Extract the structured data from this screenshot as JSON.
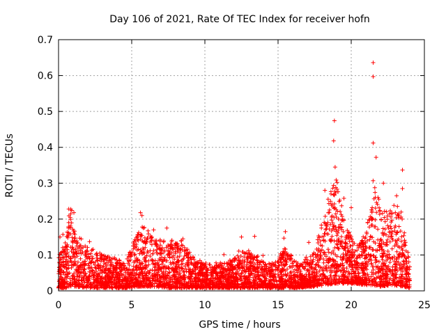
{
  "chart_data": {
    "type": "scatter",
    "title": "Day 106 of 2021, Rate Of TEC Index for receiver hofn",
    "xlabel": "GPS time / hours",
    "ylabel": "ROTI / TECUs",
    "xlim": [
      0,
      25
    ],
    "ylim": [
      0,
      0.7
    ],
    "x_ticks": [
      0,
      5,
      10,
      15,
      20,
      25
    ],
    "x_tick_labels": [
      "0",
      "5",
      "10",
      "15",
      "20",
      "25"
    ],
    "y_ticks": [
      0,
      0.1,
      0.2,
      0.3,
      0.4,
      0.5,
      0.6,
      0.7
    ],
    "y_tick_labels": [
      "0",
      "0.1",
      "0.2",
      "0.3",
      "0.4",
      "0.5",
      "0.6",
      "0.7"
    ],
    "grid": true,
    "marker": "+",
    "series_color": "#ff0000",
    "envelope": [
      {
        "x": 0.0,
        "base": 0.02,
        "top": 0.1
      },
      {
        "x": 0.5,
        "base": 0.02,
        "top": 0.14
      },
      {
        "x": 0.8,
        "base": 0.03,
        "top": 0.22
      },
      {
        "x": 1.2,
        "base": 0.03,
        "top": 0.14
      },
      {
        "x": 2.0,
        "base": 0.02,
        "top": 0.13
      },
      {
        "x": 3.0,
        "base": 0.02,
        "top": 0.1
      },
      {
        "x": 4.0,
        "base": 0.02,
        "top": 0.09
      },
      {
        "x": 4.5,
        "base": 0.02,
        "top": 0.08
      },
      {
        "x": 5.5,
        "base": 0.03,
        "top": 0.17
      },
      {
        "x": 6.5,
        "base": 0.03,
        "top": 0.15
      },
      {
        "x": 7.5,
        "base": 0.02,
        "top": 0.14
      },
      {
        "x": 8.5,
        "base": 0.02,
        "top": 0.13
      },
      {
        "x": 9.5,
        "base": 0.02,
        "top": 0.08
      },
      {
        "x": 10.5,
        "base": 0.02,
        "top": 0.07
      },
      {
        "x": 11.5,
        "base": 0.02,
        "top": 0.08
      },
      {
        "x": 12.5,
        "base": 0.02,
        "top": 0.11
      },
      {
        "x": 13.5,
        "base": 0.02,
        "top": 0.1
      },
      {
        "x": 14.5,
        "base": 0.02,
        "top": 0.08
      },
      {
        "x": 15.5,
        "base": 0.02,
        "top": 0.12
      },
      {
        "x": 16.5,
        "base": 0.02,
        "top": 0.07
      },
      {
        "x": 17.5,
        "base": 0.03,
        "top": 0.11
      },
      {
        "x": 18.3,
        "base": 0.04,
        "top": 0.24
      },
      {
        "x": 18.9,
        "base": 0.05,
        "top": 0.34
      },
      {
        "x": 19.5,
        "base": 0.05,
        "top": 0.2
      },
      {
        "x": 20.3,
        "base": 0.05,
        "top": 0.12
      },
      {
        "x": 21.0,
        "base": 0.04,
        "top": 0.16
      },
      {
        "x": 21.5,
        "base": 0.04,
        "top": 0.32
      },
      {
        "x": 22.0,
        "base": 0.03,
        "top": 0.24
      },
      {
        "x": 22.8,
        "base": 0.04,
        "top": 0.22
      },
      {
        "x": 23.5,
        "base": 0.03,
        "top": 0.22
      },
      {
        "x": 24.0,
        "base": 0.02,
        "top": 0.08
      }
    ],
    "outliers": [
      {
        "x": 21.5,
        "y": 0.636
      },
      {
        "x": 21.5,
        "y": 0.597
      },
      {
        "x": 21.5,
        "y": 0.412
      },
      {
        "x": 18.85,
        "y": 0.474
      },
      {
        "x": 18.8,
        "y": 0.418
      },
      {
        "x": 18.9,
        "y": 0.345
      },
      {
        "x": 23.5,
        "y": 0.337
      },
      {
        "x": 23.5,
        "y": 0.285
      },
      {
        "x": 18.2,
        "y": 0.28
      },
      {
        "x": 21.7,
        "y": 0.372
      },
      {
        "x": 22.2,
        "y": 0.3
      },
      {
        "x": 23.1,
        "y": 0.265
      },
      {
        "x": 0.7,
        "y": 0.228
      },
      {
        "x": 0.9,
        "y": 0.224
      },
      {
        "x": 1.05,
        "y": 0.218
      },
      {
        "x": 5.6,
        "y": 0.218
      },
      {
        "x": 5.7,
        "y": 0.21
      },
      {
        "x": 7.4,
        "y": 0.175
      },
      {
        "x": 6.5,
        "y": 0.17
      },
      {
        "x": 12.5,
        "y": 0.15
      },
      {
        "x": 13.4,
        "y": 0.152
      },
      {
        "x": 15.5,
        "y": 0.165
      },
      {
        "x": 15.4,
        "y": 0.147
      },
      {
        "x": 20.0,
        "y": 0.232
      },
      {
        "x": 19.5,
        "y": 0.258
      },
      {
        "x": 0.1,
        "y": 0.15
      },
      {
        "x": 0.3,
        "y": 0.157
      },
      {
        "x": 8.5,
        "y": 0.145
      },
      {
        "x": 11.3,
        "y": 0.101
      },
      {
        "x": 17.1,
        "y": 0.135
      }
    ]
  }
}
